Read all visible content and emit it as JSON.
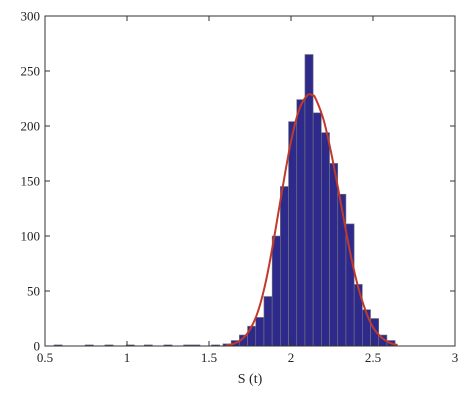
{
  "chart_data": {
    "type": "bar",
    "title": "",
    "xlabel": "S (t)",
    "ylabel": "",
    "xlim": [
      0.5,
      3
    ],
    "ylim": [
      0,
      300
    ],
    "grid": false,
    "x_ticks": [
      0.5,
      1,
      1.5,
      2,
      2.5,
      3
    ],
    "x_tick_labels": [
      "0.5",
      "1",
      "1.5",
      "2",
      "2.5",
      "3"
    ],
    "y_ticks": [
      0,
      50,
      100,
      150,
      200,
      250,
      300
    ],
    "y_tick_labels": [
      "0",
      "50",
      "100",
      "150",
      "200",
      "250",
      "300"
    ],
    "bin_width": 0.05,
    "series": [
      {
        "style": "histogram",
        "color": "#2e2a8c",
        "edge_color": "#7a7a7a",
        "bin_centers": [
          0.58,
          0.77,
          0.89,
          1.02,
          1.13,
          1.25,
          1.37,
          1.42,
          1.54,
          1.61,
          1.66,
          1.71,
          1.76,
          1.81,
          1.86,
          1.91,
          1.96,
          2.01,
          2.06,
          2.11,
          2.16,
          2.21,
          2.26,
          2.31,
          2.36,
          2.41,
          2.46,
          2.51,
          2.56,
          2.61
        ],
        "counts": [
          1,
          1,
          1,
          1,
          1,
          1,
          1,
          1,
          1,
          2,
          5,
          10,
          18,
          26,
          45,
          100,
          145,
          204,
          224,
          265,
          212,
          194,
          166,
          138,
          111,
          56,
          33,
          25,
          10,
          5
        ]
      },
      {
        "style": "line",
        "color": "#c0392b",
        "curve": "normal-fit",
        "x": [
          1.6,
          1.65,
          1.7,
          1.75,
          1.8,
          1.85,
          1.9,
          1.95,
          2.0,
          2.05,
          2.1,
          2.13,
          2.15,
          2.2,
          2.25,
          2.3,
          2.35,
          2.4,
          2.45,
          2.5,
          2.55,
          2.6,
          2.65
        ],
        "y": [
          0.5,
          2,
          6,
          15,
          32,
          61,
          101,
          145,
          186,
          215,
          228,
          228,
          225,
          205,
          172,
          133,
          93,
          59,
          34,
          17,
          8,
          3,
          1
        ]
      }
    ]
  }
}
